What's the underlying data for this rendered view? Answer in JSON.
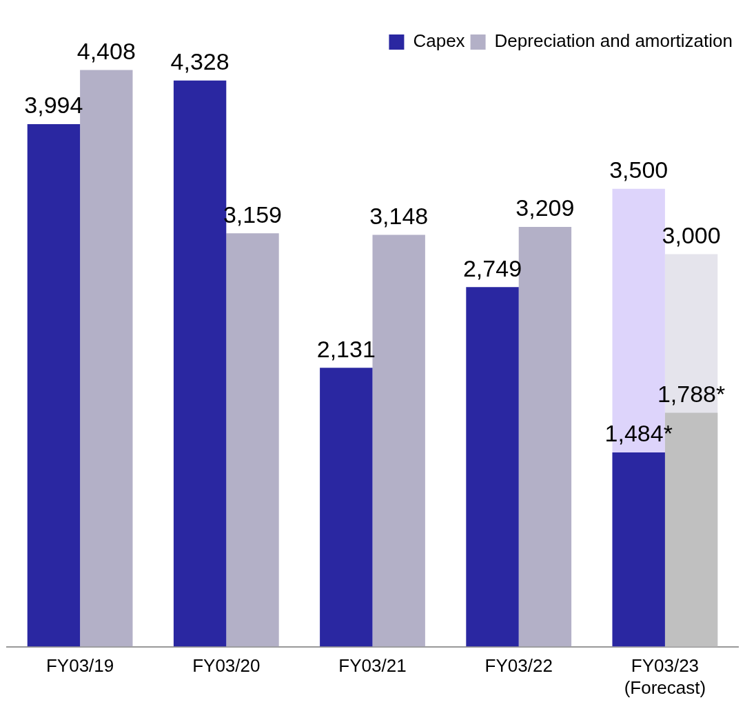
{
  "chart_data": {
    "type": "bar",
    "categories": [
      "FY03/19",
      "FY03/20",
      "FY03/21",
      "FY03/22",
      "FY03/23\n(Forecast)"
    ],
    "legend": "top right",
    "series": [
      {
        "name": "Capex",
        "color": "#2a27a1",
        "values": [
          3994,
          4328,
          2131,
          2749,
          1484
        ],
        "value_labels": [
          "3,994",
          "4,328",
          "2,131",
          "2,749",
          "1,484*"
        ]
      },
      {
        "name": "Depreciation and amortization",
        "color": "#b3b0c7",
        "colors": [
          "#b3b0c7",
          "#b3b0c7",
          "#b3b0c7",
          "#b3b0c7",
          "#c0c0c0"
        ],
        "values": [
          4408,
          3159,
          3148,
          3209,
          1788
        ],
        "value_labels": [
          "4,408",
          "3,159",
          "3,148",
          "3,209",
          "1,788*"
        ]
      },
      {
        "color": "#ddd4fb",
        "values": [
          null,
          null,
          null,
          null,
          3500
        ],
        "value_labels": [
          null,
          null,
          null,
          null,
          "3,500"
        ]
      },
      {
        "color": "#e5e4ec",
        "values": [
          null,
          null,
          null,
          null,
          3000
        ],
        "value_labels": [
          null,
          null,
          null,
          null,
          "3,000"
        ]
      }
    ]
  }
}
